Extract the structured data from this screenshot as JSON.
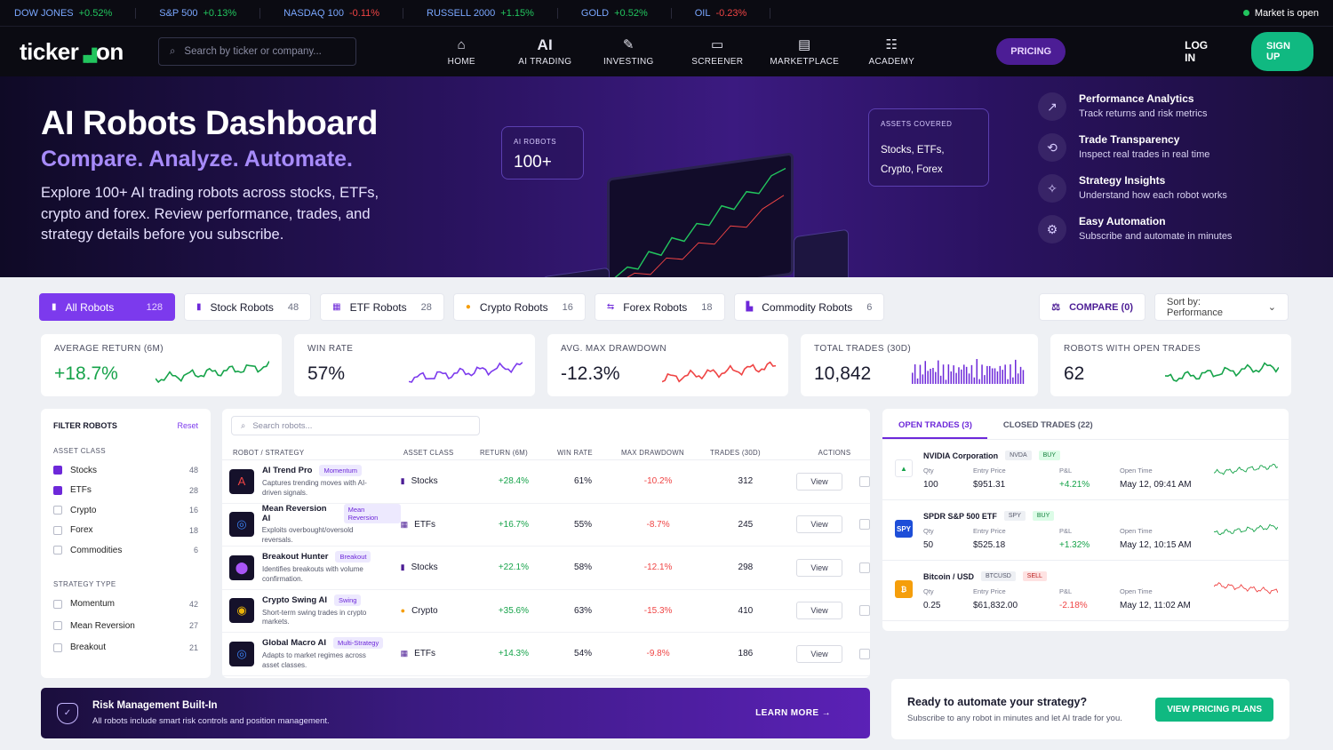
{
  "ticker": [
    {
      "name": "DOW JONES",
      "change": "+0.52%",
      "dir": "up"
    },
    {
      "name": "S&P 500",
      "change": "+0.13%",
      "dir": "up"
    },
    {
      "name": "NASDAQ 100",
      "change": "-0.11%",
      "dir": "dn"
    },
    {
      "name": "RUSSELL 2000",
      "change": "+1.15%",
      "dir": "up"
    },
    {
      "name": "GOLD",
      "change": "+0.52%",
      "dir": "up"
    },
    {
      "name": "OIL",
      "change": "-0.23%",
      "dir": "dn"
    }
  ],
  "market_status": "Market is open",
  "nav": {
    "logo_a": "ticker",
    "logo_b": "on",
    "search_placeholder": "Search by ticker or company...",
    "items": [
      {
        "icon": "home-icon",
        "glyph": "⌂",
        "label": "HOME"
      },
      {
        "icon": "ai-icon",
        "glyph": "AI",
        "label": "AI TRADING"
      },
      {
        "icon": "investing-icon",
        "glyph": "✎",
        "label": "INVESTING"
      },
      {
        "icon": "screener-icon",
        "glyph": "▭",
        "label": "SCREENER"
      },
      {
        "icon": "marketplace-icon",
        "glyph": "▤",
        "label": "MARKETPLACE"
      },
      {
        "icon": "academy-icon",
        "glyph": "☷",
        "label": "ACADEMY"
      }
    ],
    "pricing": "PRICING",
    "login": "LOG IN",
    "signup": "SIGN UP"
  },
  "hero": {
    "title": "AI Robots Dashboard",
    "subtitle": "Compare. Analyze. Automate.",
    "desc": "Explore 100+ AI trading robots across stocks, ETFs, crypto and forex. Review performance, trades, and strategy details before you subscribe.",
    "robots_label": "AI ROBOTS",
    "robots_value": "100+",
    "assets_label": "ASSETS COVERED",
    "assets_line1": "Stocks, ETFs,",
    "assets_line2": "Crypto, Forex",
    "features": [
      {
        "icon": "chart-icon",
        "glyph": "↗",
        "title": "Performance Analytics",
        "sub": "Track returns and risk metrics"
      },
      {
        "icon": "transparency-icon",
        "glyph": "⟲",
        "title": "Trade Transparency",
        "sub": "Inspect real trades in real time"
      },
      {
        "icon": "insights-icon",
        "glyph": "✧",
        "title": "Strategy Insights",
        "sub": "Understand how each robot works"
      },
      {
        "icon": "automation-icon",
        "glyph": "⚙",
        "title": "Easy Automation",
        "sub": "Subscribe and automate in minutes"
      }
    ]
  },
  "tabs": [
    {
      "label": "All Robots",
      "count": "128",
      "glyph": "▮"
    },
    {
      "label": "Stock Robots",
      "count": "48",
      "glyph": "▮"
    },
    {
      "label": "ETF Robots",
      "count": "28",
      "glyph": "▦"
    },
    {
      "label": "Crypto Robots",
      "count": "16",
      "glyph": "●"
    },
    {
      "label": "Forex Robots",
      "count": "18",
      "glyph": "⇆"
    },
    {
      "label": "Commodity Robots",
      "count": "6",
      "glyph": "▙"
    }
  ],
  "compare": "COMPARE (0)",
  "sort": "Sort by: Performance",
  "kpis": [
    {
      "label": "AVERAGE RETURN (6M)",
      "value": "+18.7%",
      "color": "#16a34a",
      "kind": "line"
    },
    {
      "label": "WIN RATE",
      "value": "57%",
      "color": "#7c3aed",
      "kind": "line"
    },
    {
      "label": "AVG. MAX DRAWDOWN",
      "value": "-12.3%",
      "color": "#ef4444",
      "kind": "line"
    },
    {
      "label": "TOTAL TRADES (30D)",
      "value": "10,842",
      "color": "#6d28d9",
      "kind": "bars"
    },
    {
      "label": "ROBOTS WITH OPEN TRADES",
      "value": "62",
      "color": "#16a34a",
      "kind": "line"
    }
  ],
  "filter": {
    "title": "FILTER ROBOTS",
    "reset": "Reset",
    "asset_title": "ASSET CLASS",
    "assets": [
      {
        "label": "Stocks",
        "count": "48",
        "on": true
      },
      {
        "label": "ETFs",
        "count": "28",
        "on": true
      },
      {
        "label": "Crypto",
        "count": "16",
        "on": false
      },
      {
        "label": "Forex",
        "count": "18",
        "on": false
      },
      {
        "label": "Commodities",
        "count": "6",
        "on": false
      }
    ],
    "strategy_title": "STRATEGY TYPE",
    "strategies": [
      {
        "label": "Momentum",
        "count": "42"
      },
      {
        "label": "Mean Reversion",
        "count": "27"
      },
      {
        "label": "Breakout",
        "count": "21"
      }
    ]
  },
  "table": {
    "search_placeholder": "Search robots...",
    "headers": [
      "ROBOT / STRATEGY",
      "ASSET CLASS",
      "RETURN (6M)",
      "WIN RATE",
      "MAX DRAWDOWN",
      "TRADES (30D)",
      "ACTIONS"
    ],
    "view": "View",
    "rows": [
      {
        "name": "AI Trend Pro",
        "tag": "Momentum",
        "desc": "Captures trending moves with AI-driven signals.",
        "asset": "Stocks",
        "ret": "+28.4%",
        "win": "61%",
        "dd": "-10.2%",
        "trades": "312",
        "glyph": "A",
        "icolor": "#ef4444"
      },
      {
        "name": "Mean Reversion AI",
        "tag": "Mean Reversion",
        "desc": "Exploits overbought/oversold reversals.",
        "asset": "ETFs",
        "ret": "+16.7%",
        "win": "55%",
        "dd": "-8.7%",
        "trades": "245",
        "glyph": "◎",
        "icolor": "#3b82f6"
      },
      {
        "name": "Breakout Hunter",
        "tag": "Breakout",
        "desc": "Identifies breakouts with volume confirmation.",
        "asset": "Stocks",
        "ret": "+22.1%",
        "win": "58%",
        "dd": "-12.1%",
        "trades": "298",
        "glyph": "⬤",
        "icolor": "#a855f7"
      },
      {
        "name": "Crypto Swing AI",
        "tag": "Swing",
        "desc": "Short-term swing trades in crypto markets.",
        "asset": "Crypto",
        "ret": "+35.6%",
        "win": "63%",
        "dd": "-15.3%",
        "trades": "410",
        "glyph": "◉",
        "icolor": "#eab308"
      },
      {
        "name": "Global Macro AI",
        "tag": "Multi-Strategy",
        "desc": "Adapts to market regimes across asset classes.",
        "asset": "ETFs",
        "ret": "+14.3%",
        "win": "54%",
        "dd": "-9.8%",
        "trades": "186",
        "glyph": "◎",
        "icolor": "#3b82f6"
      }
    ]
  },
  "trades": {
    "tab_open": "OPEN TRADES (3)",
    "tab_closed": "CLOSED TRADES (22)",
    "labels": {
      "qty": "Qty",
      "entry": "Entry Price",
      "pnl": "P&L",
      "time": "Open Time"
    },
    "items": [
      {
        "name": "NVIDIA Corporation",
        "sym": "NVDA",
        "side": "BUY",
        "qty": "100",
        "entry": "$951.31",
        "pnl": "+4.21%",
        "time": "May 12, 09:41 AM",
        "logo": "▲",
        "logocolor": "#ffffff",
        "logotext": "#16a34a",
        "dir": "up"
      },
      {
        "name": "SPDR S&P 500 ETF",
        "sym": "SPY",
        "side": "BUY",
        "qty": "50",
        "entry": "$525.18",
        "pnl": "+1.32%",
        "time": "May 12, 10:15 AM",
        "logo": "SPY",
        "logocolor": "#1d4ed8",
        "logotext": "#ffffff",
        "dir": "up"
      },
      {
        "name": "Bitcoin / USD",
        "sym": "BTCUSD",
        "side": "SELL",
        "qty": "0.25",
        "entry": "$61,832.00",
        "pnl": "-2.18%",
        "time": "May 12, 11:02 AM",
        "logo": "₿",
        "logocolor": "#f59e0b",
        "logotext": "#ffffff",
        "dir": "dn"
      }
    ]
  },
  "risk": {
    "title": "Risk Management Built-In",
    "sub": "All robots include smart risk controls and position management.",
    "link": "LEARN MORE"
  },
  "cta": {
    "title": "Ready to automate your strategy?",
    "sub": "Subscribe to any robot in minutes and let AI trade for you.",
    "button": "VIEW PRICING PLANS"
  }
}
